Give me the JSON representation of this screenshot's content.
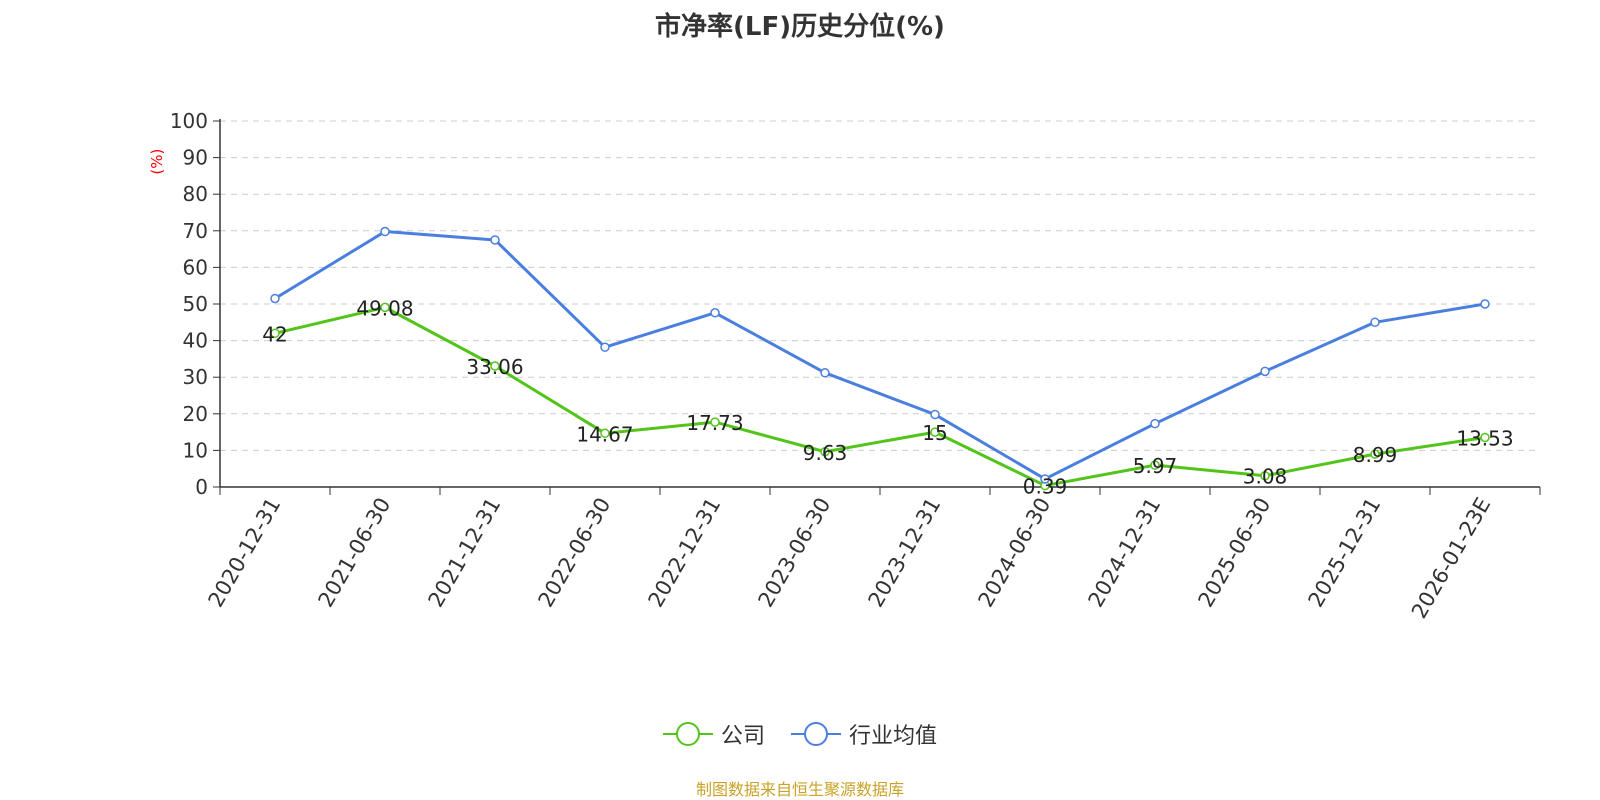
{
  "chart_data": {
    "type": "line",
    "title": "市净率(LF)历史分位(%)",
    "ylabel": "(%)",
    "xlabel": "",
    "ylim": [
      0,
      100
    ],
    "yticks": [
      "0",
      "10",
      "20",
      "30",
      "40",
      "50",
      "60",
      "70",
      "80",
      "90",
      "100"
    ],
    "categories": [
      "2020-12-31",
      "2021-06-30",
      "2021-12-31",
      "2022-06-30",
      "2022-12-31",
      "2023-06-30",
      "2023-12-31",
      "2024-06-30",
      "2024-12-31",
      "2025-06-30",
      "2025-12-31",
      "2026-01-23E"
    ],
    "series": [
      {
        "name": "公司",
        "color": "#52c41a",
        "values": [
          42,
          49.08,
          33.06,
          14.67,
          17.73,
          9.63,
          15,
          0.39,
          5.97,
          3.08,
          8.99,
          13.53
        ],
        "labels": [
          "42",
          "49.08",
          "33.06",
          "14.67",
          "17.73",
          "9.63",
          "15",
          "0.39",
          "5.97",
          "3.08",
          "8.99",
          "13.53"
        ]
      },
      {
        "name": "行业均值",
        "color": "#4a7fe0",
        "values": [
          51.5,
          69.8,
          67.5,
          38.2,
          47.6,
          31.2,
          19.8,
          2.2,
          17.3,
          31.6,
          45,
          50
        ]
      }
    ],
    "grid": true,
    "legend_position": "bottom-center"
  },
  "source_note": "制图数据来自恒生聚源数据库",
  "colors": {
    "ylabel": "#ff0000",
    "source_note": "#c9a227",
    "axis": "#333333",
    "grid": "#cccccc"
  }
}
